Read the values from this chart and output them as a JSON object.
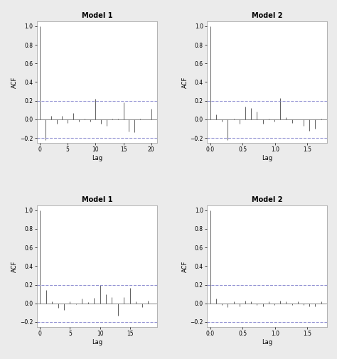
{
  "title_top_left": "Model 1",
  "title_top_right": "Model 2",
  "title_bottom_left": "Model 1",
  "title_bottom_right": "Model 2",
  "ylabel": "ACF",
  "xlabel": "Lag",
  "background_color": "#ebebeb",
  "line_color": "#606060",
  "conf_color": "#8080cc",
  "top_left": {
    "lags": [
      0,
      1,
      2,
      3,
      4,
      5,
      6,
      7,
      8,
      9,
      10,
      11,
      12,
      13,
      14,
      15,
      16,
      17,
      18,
      19,
      20
    ],
    "acf": [
      1.0,
      -0.22,
      0.04,
      -0.05,
      0.04,
      -0.04,
      0.07,
      -0.02,
      0.01,
      -0.02,
      0.22,
      -0.05,
      -0.07,
      0.01,
      0.01,
      0.18,
      -0.13,
      -0.14,
      0.01,
      0.0,
      0.11
    ],
    "xlim": [
      -0.5,
      21
    ],
    "ylim": [
      -0.25,
      1.05
    ],
    "xticks": [
      0,
      5,
      10,
      15,
      20
    ],
    "yticks": [
      -0.2,
      0.0,
      0.2,
      0.4,
      0.6,
      0.8,
      1.0
    ],
    "conf": 0.2
  },
  "top_right": {
    "lags": [
      0.0,
      0.09,
      0.18,
      0.27,
      0.36,
      0.45,
      0.54,
      0.63,
      0.72,
      0.81,
      0.9,
      0.99,
      1.08,
      1.17,
      1.26,
      1.35,
      1.44,
      1.53,
      1.62,
      1.71
    ],
    "acf": [
      1.0,
      0.05,
      -0.02,
      -0.22,
      0.01,
      -0.05,
      0.14,
      0.12,
      0.08,
      -0.05,
      0.01,
      -0.02,
      0.23,
      0.02,
      -0.04,
      0.0,
      -0.07,
      -0.12,
      -0.1,
      0.01
    ],
    "xlim": [
      -0.05,
      1.8
    ],
    "ylim": [
      -0.25,
      1.05
    ],
    "xticks": [
      0.0,
      0.5,
      1.0,
      1.5
    ],
    "yticks": [
      -0.2,
      0.0,
      0.2,
      0.4,
      0.6,
      0.8,
      1.0
    ],
    "conf": 0.2
  },
  "bottom_left": {
    "lags": [
      0,
      1,
      2,
      3,
      4,
      5,
      6,
      7,
      8,
      9,
      10,
      11,
      12,
      13,
      14,
      15,
      16,
      17,
      18
    ],
    "acf": [
      1.0,
      0.14,
      0.02,
      -0.05,
      -0.07,
      0.02,
      -0.01,
      0.05,
      0.01,
      0.06,
      0.2,
      0.1,
      0.07,
      -0.13,
      0.07,
      0.17,
      0.02,
      -0.04,
      0.03
    ],
    "xlim": [
      -0.5,
      19.5
    ],
    "ylim": [
      -0.25,
      1.05
    ],
    "xticks": [
      0,
      5,
      10,
      15
    ],
    "yticks": [
      -0.2,
      0.0,
      0.2,
      0.4,
      0.6,
      0.8,
      1.0
    ],
    "conf": 0.2
  },
  "bottom_right": {
    "lags": [
      0.0,
      0.09,
      0.18,
      0.27,
      0.36,
      0.45,
      0.54,
      0.63,
      0.72,
      0.81,
      0.9,
      0.99,
      1.08,
      1.17,
      1.26,
      1.35,
      1.44,
      1.53,
      1.62,
      1.71
    ],
    "acf": [
      1.0,
      0.05,
      -0.02,
      -0.04,
      0.02,
      -0.03,
      0.03,
      0.02,
      -0.02,
      -0.03,
      0.02,
      -0.02,
      0.03,
      0.02,
      -0.02,
      0.02,
      -0.02,
      -0.03,
      -0.03,
      0.02
    ],
    "xlim": [
      -0.05,
      1.8
    ],
    "ylim": [
      -0.25,
      1.05
    ],
    "xticks": [
      0.0,
      0.5,
      1.0,
      1.5
    ],
    "yticks": [
      -0.2,
      0.0,
      0.2,
      0.4,
      0.6,
      0.8,
      1.0
    ],
    "conf": 0.2
  }
}
